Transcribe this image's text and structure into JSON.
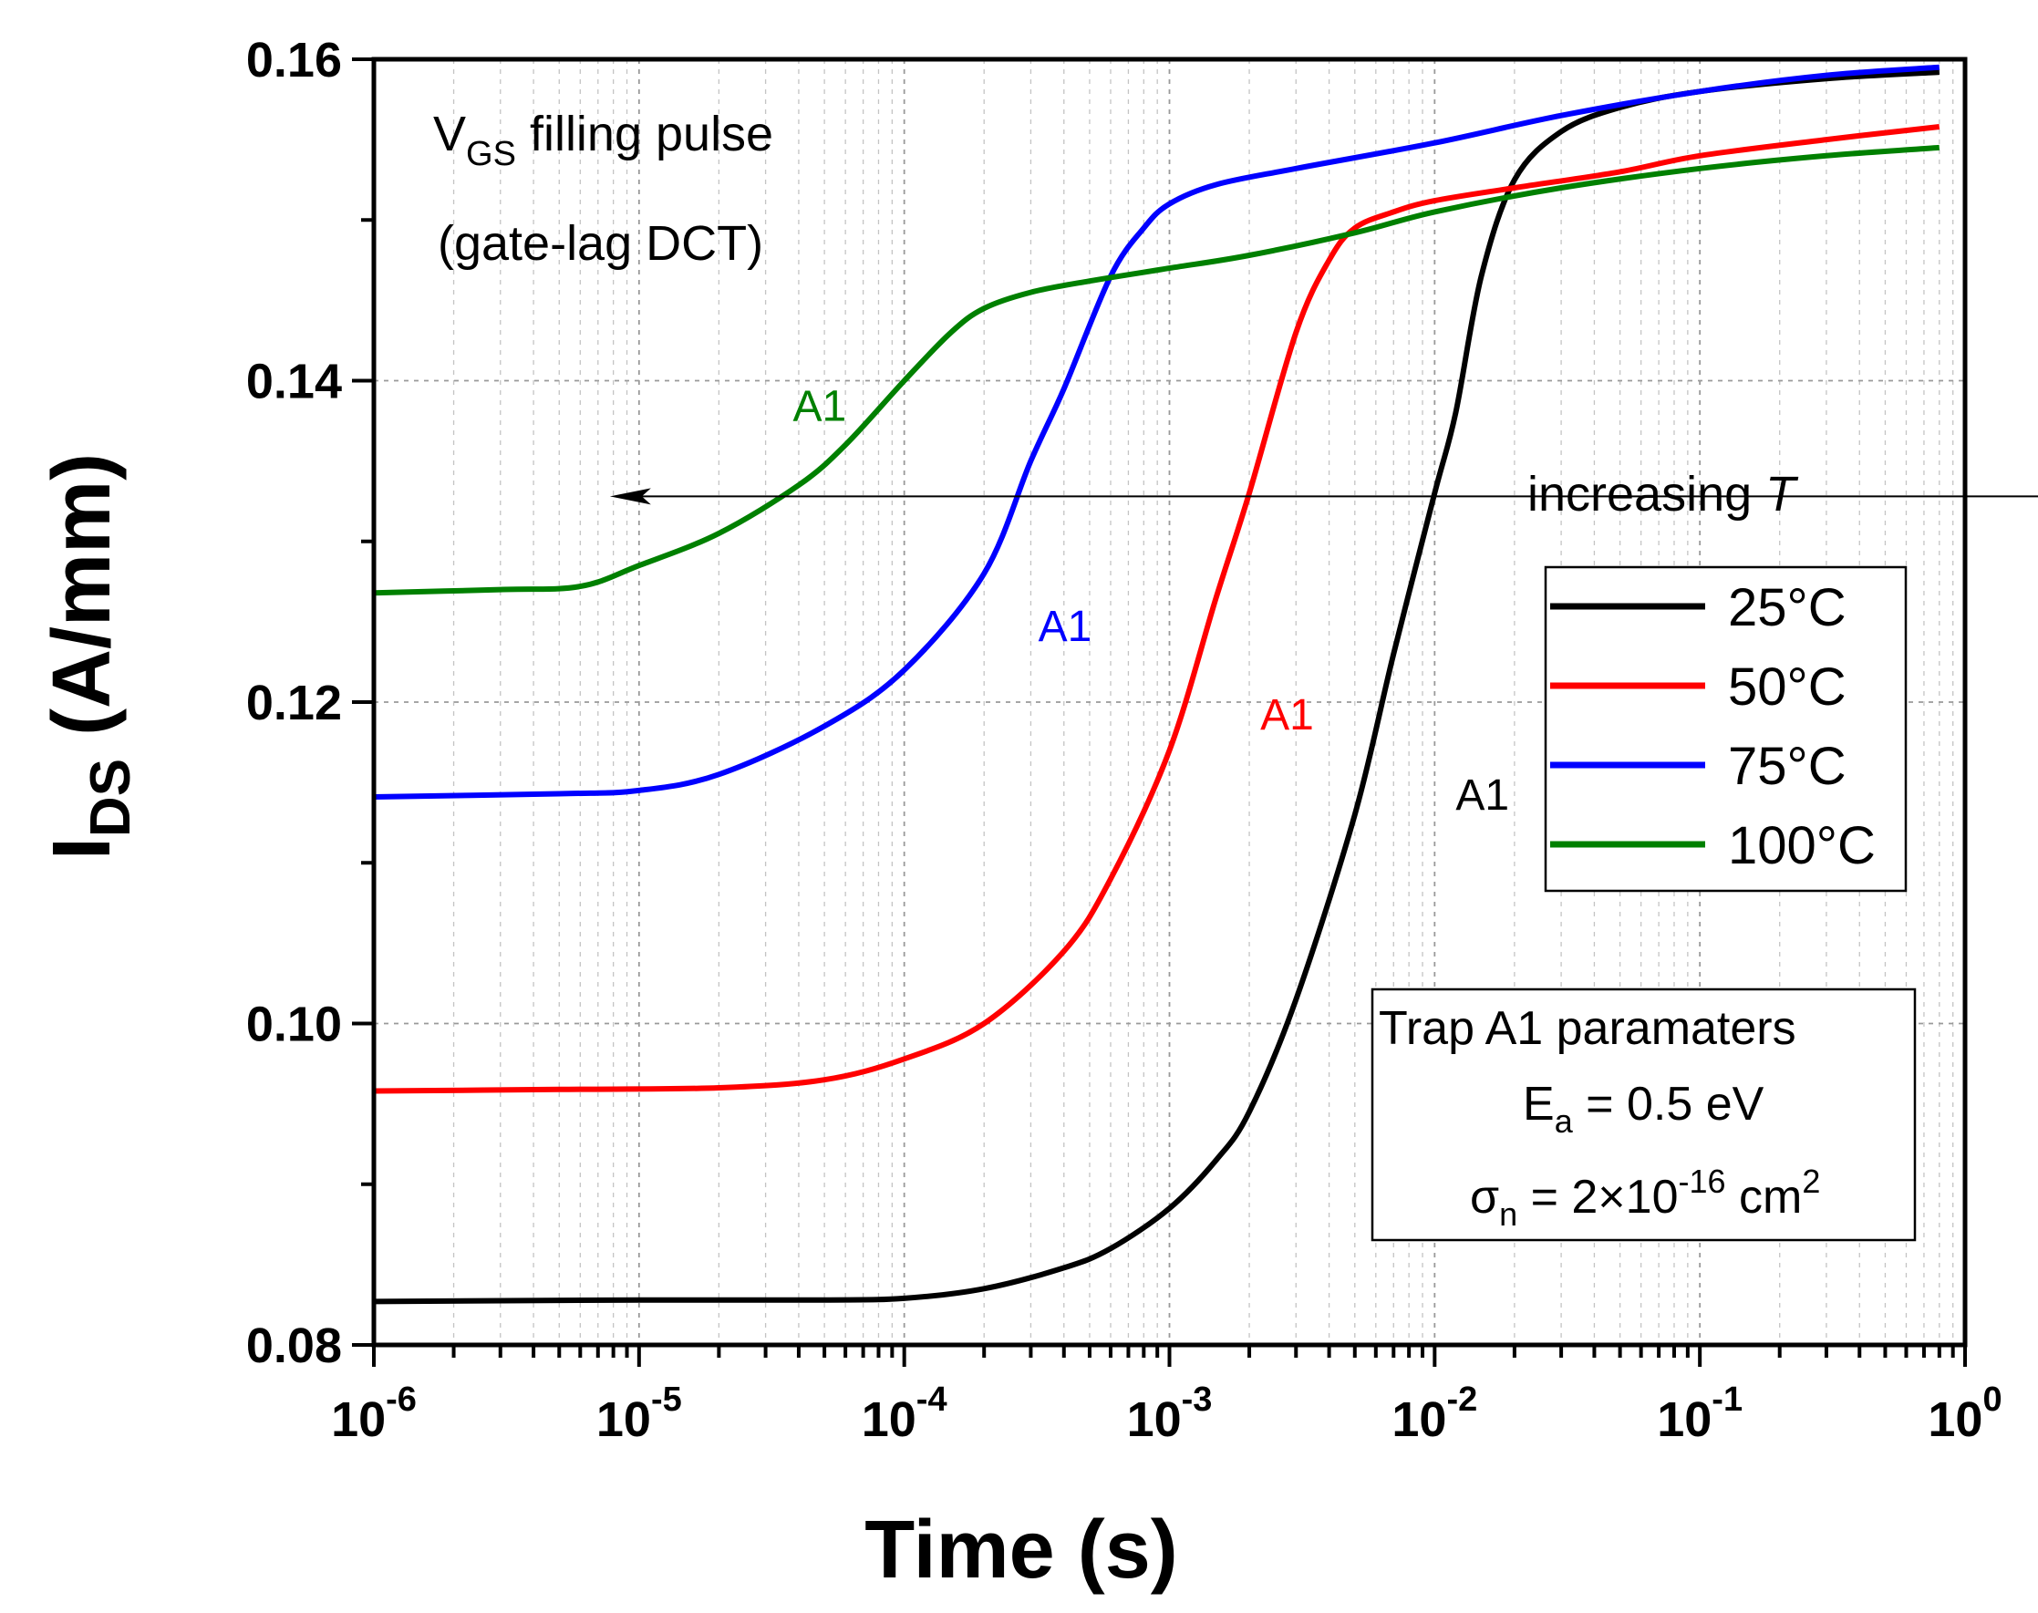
{
  "chart_data": {
    "type": "line",
    "xlabel": "Time (s)",
    "ylabel": {
      "main": "I",
      "sub": "DS",
      "rest": " (A/mm)"
    },
    "xscale": "log",
    "xlim": [
      1e-06,
      1
    ],
    "ylim": [
      0.08,
      0.16
    ],
    "grid": true,
    "x_ticks": [
      {
        "base": "10",
        "exp": "-6"
      },
      {
        "base": "10",
        "exp": "-5"
      },
      {
        "base": "10",
        "exp": "-4"
      },
      {
        "base": "10",
        "exp": "-3"
      },
      {
        "base": "10",
        "exp": "-2"
      },
      {
        "base": "10",
        "exp": "-1"
      },
      {
        "base": "10",
        "exp": "0"
      }
    ],
    "y_ticks": [
      "0.08",
      "0.10",
      "0.12",
      "0.14",
      "0.16"
    ],
    "legend_position": "right",
    "series": [
      {
        "name": "25°C",
        "color": "#000000",
        "x": [
          1e-06,
          1e-05,
          5e-05,
          0.0001,
          0.0002,
          0.0004,
          0.0006,
          0.001,
          0.0015,
          0.002,
          0.003,
          0.005,
          0.007,
          0.01,
          0.012,
          0.015,
          0.02,
          0.03,
          0.05,
          0.1,
          0.3,
          0.8
        ],
        "y": [
          0.0827,
          0.0828,
          0.0828,
          0.0829,
          0.0835,
          0.0848,
          0.086,
          0.0885,
          0.0915,
          0.0945,
          0.1015,
          0.113,
          0.123,
          0.133,
          0.138,
          0.1465,
          0.1525,
          0.1555,
          0.157,
          0.158,
          0.1588,
          0.1592
        ]
      },
      {
        "name": "50°C",
        "color": "#ff0000",
        "x": [
          1e-06,
          5e-06,
          2e-05,
          5e-05,
          0.0001,
          0.0002,
          0.0004,
          0.0006,
          0.001,
          0.0015,
          0.002,
          0.003,
          0.004,
          0.005,
          0.007,
          0.01,
          0.02,
          0.05,
          0.1,
          0.3,
          0.8
        ],
        "y": [
          0.0958,
          0.0959,
          0.096,
          0.0965,
          0.0978,
          0.1,
          0.1045,
          0.109,
          0.117,
          0.1265,
          0.133,
          0.143,
          0.1475,
          0.1495,
          0.1505,
          0.1512,
          0.152,
          0.153,
          0.154,
          0.155,
          0.1558
        ]
      },
      {
        "name": "75°C",
        "color": "#0000ff",
        "x": [
          1e-06,
          5e-06,
          1e-05,
          2e-05,
          5e-05,
          0.0001,
          0.0002,
          0.0003,
          0.0004,
          0.0006,
          0.0008,
          0.001,
          0.0015,
          0.003,
          0.01,
          0.03,
          0.1,
          0.3,
          0.8
        ],
        "y": [
          0.1141,
          0.1143,
          0.1145,
          0.1155,
          0.1185,
          0.122,
          0.128,
          0.135,
          0.1395,
          0.1465,
          0.1495,
          0.151,
          0.1522,
          0.1532,
          0.1548,
          0.1565,
          0.158,
          0.159,
          0.1595
        ]
      },
      {
        "name": "100°C",
        "color": "#008000",
        "x": [
          1e-06,
          3e-06,
          6e-06,
          1e-05,
          2e-05,
          4e-05,
          6e-05,
          0.0001,
          0.00015,
          0.0002,
          0.0003,
          0.0005,
          0.001,
          0.002,
          0.005,
          0.01,
          0.03,
          0.1,
          0.3,
          0.8
        ],
        "y": [
          0.1268,
          0.127,
          0.1272,
          0.1285,
          0.1305,
          0.1335,
          0.136,
          0.14,
          0.143,
          0.1445,
          0.1455,
          0.1462,
          0.147,
          0.1478,
          0.1492,
          0.1505,
          0.152,
          0.1532,
          0.154,
          0.1545
        ]
      }
    ],
    "curve_labels": [
      {
        "text": "A1",
        "color": "#008000",
        "x": 3.8e-05,
        "y": 0.1375
      },
      {
        "text": "A1",
        "color": "#0000ff",
        "x": 0.00032,
        "y": 0.1238
      },
      {
        "text": "A1",
        "color": "#ff0000",
        "x": 0.0022,
        "y": 0.1183
      },
      {
        "text": "A1",
        "color": "#000000",
        "x": 0.012,
        "y": 0.1133
      }
    ],
    "annotations": {
      "pulse_line1": {
        "main": "V",
        "sub": "GS",
        "rest": " filling pulse"
      },
      "pulse_line2": "(gate-lag DCT)",
      "arrow_label": {
        "text": "increasing ",
        "italic": "T"
      },
      "arrow": {
        "from_x": 0.03,
        "to_x": 1.2e-05,
        "y": 0.1328
      }
    },
    "params_box": {
      "title": "Trap A1 paramaters",
      "ea": {
        "main": "E",
        "sub": "a",
        "rest": " = 0.5 eV"
      },
      "sigma": {
        "main": "σ",
        "sub": "n",
        "mid": " = 2×10",
        "exp": "-16",
        "unit": " cm",
        "unit_exp": "2"
      }
    }
  }
}
